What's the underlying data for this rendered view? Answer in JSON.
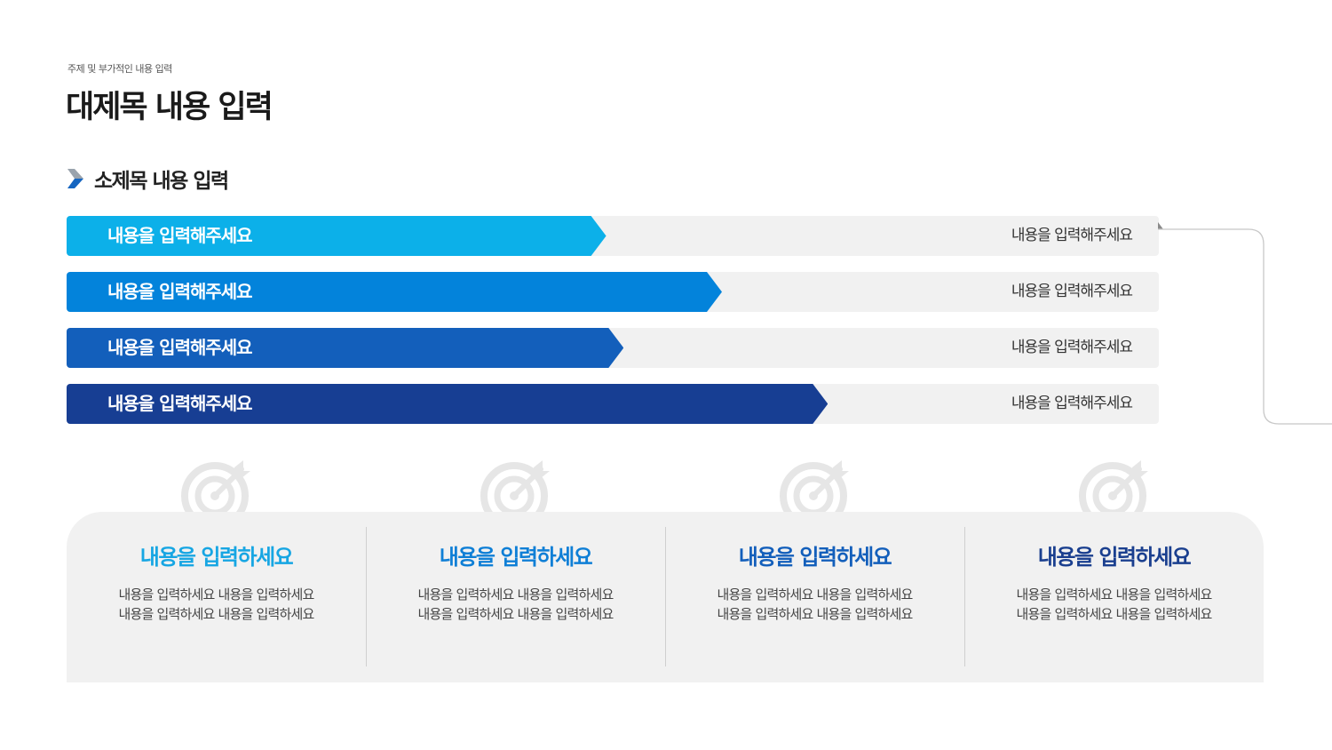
{
  "header": {
    "kicker": "주제 및 부가적인 내용 입력",
    "title": "대제목 내용 입력",
    "subtitle": "소제목 내용 입력"
  },
  "bars": [
    {
      "label": "내용을 입력해주세요",
      "value": "내용을 입력해주세요",
      "fill_percent": 49.4,
      "color": "#0cb0e9"
    },
    {
      "label": "내용을 입력해주세요",
      "value": "내용을 입력해주세요",
      "fill_percent": 60.0,
      "color": "#0383db"
    },
    {
      "label": "내용을 입력해주세요",
      "value": "내용을 입력해주세요",
      "fill_percent": 51.0,
      "color": "#135fbb"
    },
    {
      "label": "내용을 입력해주세요",
      "value": "내용을 입력해주세요",
      "fill_percent": 69.7,
      "color": "#173e93"
    }
  ],
  "cards": [
    {
      "icon": "target-icon",
      "title": "내용을 입력하세요",
      "line1": "내용을 입력하세요 내용을 입력하세요",
      "line2": "내용을 입력하세요 내용을 입력하세요",
      "color": "#17a6e3"
    },
    {
      "icon": "target-icon",
      "title": "내용을 입력하세요",
      "line1": "내용을 입력하세요 내용을 입력하세요",
      "line2": "내용을 입력하세요 내용을 입력하세요",
      "color": "#0f7fd6"
    },
    {
      "icon": "target-icon",
      "title": "내용을 입력하세요",
      "line1": "내용을 입력하세요 내용을 입력하세요",
      "line2": "내용을 입력하세요 내용을 입력하세요",
      "color": "#135fbb"
    },
    {
      "icon": "target-icon",
      "title": "내용을 입력하세요",
      "line1": "내용을 입력하세요 내용을 입력하세요",
      "line2": "내용을 입력하세요 내용을 입력하세요",
      "color": "#1a3f8f"
    }
  ]
}
